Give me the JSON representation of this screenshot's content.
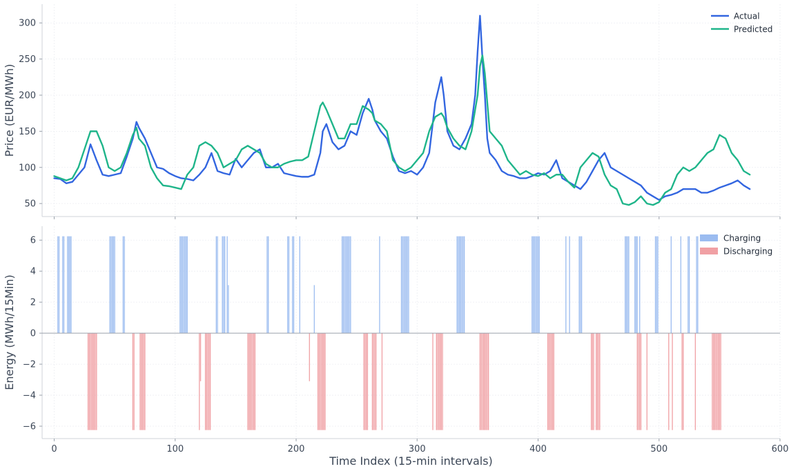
{
  "chart_data": [
    {
      "type": "line",
      "ylabel": "Price (EUR/MWh)",
      "xlim": [
        -10,
        600
      ],
      "ylim": [
        32,
        326
      ],
      "yticks": [
        50,
        100,
        150,
        200,
        250,
        300
      ],
      "grid": true,
      "legend": "top-right",
      "series": [
        {
          "name": "Actual",
          "color": "#3366e0",
          "x": [
            0,
            5,
            10,
            15,
            20,
            25,
            30,
            35,
            40,
            45,
            50,
            55,
            60,
            65,
            68,
            70,
            75,
            80,
            85,
            90,
            95,
            100,
            105,
            110,
            115,
            120,
            125,
            130,
            135,
            140,
            145,
            150,
            155,
            160,
            165,
            170,
            175,
            180,
            185,
            190,
            195,
            200,
            205,
            210,
            215,
            220,
            222,
            225,
            230,
            235,
            240,
            245,
            250,
            255,
            260,
            263,
            265,
            270,
            275,
            280,
            285,
            290,
            295,
            300,
            305,
            310,
            315,
            320,
            322,
            325,
            330,
            335,
            340,
            345,
            348,
            350,
            352,
            354,
            356,
            358,
            360,
            365,
            370,
            375,
            380,
            385,
            390,
            395,
            400,
            405,
            410,
            415,
            420,
            425,
            430,
            435,
            440,
            445,
            450,
            455,
            460,
            465,
            470,
            475,
            480,
            485,
            490,
            495,
            500,
            505,
            510,
            515,
            520,
            525,
            530,
            535,
            540,
            545,
            550,
            555,
            560,
            565,
            570,
            575
          ],
          "y": [
            85,
            84,
            78,
            80,
            90,
            100,
            132,
            110,
            90,
            88,
            90,
            92,
            115,
            140,
            163,
            155,
            140,
            120,
            100,
            98,
            92,
            88,
            85,
            84,
            82,
            90,
            100,
            120,
            95,
            92,
            90,
            112,
            100,
            110,
            120,
            125,
            100,
            100,
            105,
            92,
            90,
            88,
            87,
            87,
            90,
            120,
            150,
            160,
            135,
            125,
            130,
            150,
            145,
            175,
            195,
            180,
            165,
            150,
            140,
            115,
            95,
            92,
            95,
            90,
            100,
            120,
            190,
            225,
            200,
            150,
            130,
            125,
            140,
            160,
            200,
            260,
            310,
            250,
            200,
            140,
            120,
            110,
            95,
            90,
            88,
            85,
            85,
            88,
            92,
            90,
            95,
            110,
            85,
            80,
            75,
            70,
            80,
            95,
            110,
            120,
            100,
            95,
            90,
            85,
            80,
            75,
            65,
            60,
            55,
            60,
            62,
            65,
            70,
            70,
            70,
            65,
            65,
            68,
            72,
            75,
            78,
            82,
            75,
            70
          ]
        },
        {
          "name": "Predicted",
          "color": "#1fb58a",
          "x": [
            0,
            5,
            10,
            15,
            20,
            25,
            30,
            35,
            40,
            45,
            50,
            55,
            60,
            65,
            68,
            70,
            75,
            80,
            85,
            90,
            95,
            100,
            105,
            110,
            115,
            120,
            125,
            130,
            135,
            140,
            145,
            150,
            155,
            160,
            165,
            170,
            175,
            180,
            185,
            190,
            195,
            200,
            205,
            210,
            215,
            220,
            222,
            225,
            230,
            235,
            240,
            245,
            250,
            255,
            260,
            263,
            265,
            270,
            275,
            280,
            285,
            290,
            295,
            300,
            305,
            310,
            315,
            320,
            322,
            325,
            330,
            335,
            340,
            345,
            348,
            350,
            352,
            354,
            356,
            358,
            360,
            365,
            370,
            375,
            380,
            385,
            390,
            395,
            400,
            405,
            410,
            415,
            420,
            425,
            430,
            435,
            440,
            445,
            450,
            455,
            460,
            465,
            470,
            475,
            480,
            485,
            490,
            495,
            500,
            505,
            510,
            515,
            520,
            525,
            530,
            535,
            540,
            545,
            550,
            555,
            560,
            565,
            570,
            575
          ],
          "y": [
            88,
            85,
            82,
            85,
            100,
            125,
            150,
            150,
            130,
            100,
            95,
            100,
            120,
            145,
            155,
            140,
            130,
            100,
            85,
            75,
            74,
            72,
            70,
            90,
            100,
            130,
            135,
            130,
            120,
            100,
            105,
            110,
            125,
            130,
            125,
            120,
            105,
            100,
            100,
            105,
            108,
            110,
            110,
            115,
            150,
            185,
            190,
            180,
            160,
            140,
            140,
            160,
            160,
            185,
            180,
            175,
            165,
            160,
            150,
            110,
            100,
            95,
            100,
            110,
            120,
            150,
            170,
            175,
            170,
            155,
            140,
            130,
            125,
            150,
            180,
            200,
            240,
            255,
            230,
            190,
            150,
            140,
            130,
            110,
            100,
            90,
            95,
            90,
            88,
            92,
            85,
            90,
            90,
            80,
            72,
            100,
            110,
            120,
            115,
            90,
            75,
            70,
            50,
            48,
            52,
            60,
            50,
            48,
            52,
            65,
            70,
            90,
            100,
            95,
            100,
            110,
            120,
            125,
            145,
            140,
            120,
            110,
            95,
            90
          ]
        }
      ]
    },
    {
      "type": "bar",
      "xlabel": "Time Index (15-min intervals)",
      "ylabel": "Energy (MWh/15Min)",
      "xlim": [
        -10,
        600
      ],
      "ylim": [
        -6.8,
        6.9
      ],
      "xticks": [
        0,
        100,
        200,
        300,
        400,
        500,
        600
      ],
      "yticks": [
        -6,
        -4,
        -2,
        0,
        2,
        4,
        6
      ],
      "grid": true,
      "legend": "top-right",
      "series": [
        {
          "name": "Charging",
          "color": "#9bbcf0",
          "x": [
            3,
            4,
            7,
            8,
            11,
            12,
            13,
            14,
            46,
            47,
            48,
            49,
            50,
            57,
            58,
            104,
            105,
            106,
            107,
            108,
            109,
            110,
            134,
            135,
            139,
            140,
            141,
            143,
            144,
            176,
            177,
            193,
            194,
            197,
            198,
            203,
            215,
            238,
            239,
            240,
            241,
            242,
            243,
            244,
            245,
            269,
            287,
            288,
            289,
            290,
            291,
            292,
            293,
            333,
            334,
            335,
            336,
            337,
            338,
            339,
            395,
            396,
            397,
            398,
            399,
            400,
            401,
            423,
            426,
            434,
            435,
            436,
            472,
            473,
            474,
            475,
            480,
            481,
            482,
            484,
            497,
            498,
            499,
            510,
            518,
            524,
            525,
            531,
            532
          ],
          "y": [
            6.25,
            6.25,
            6.25,
            6.25,
            6.25,
            6.25,
            6.25,
            6.25,
            6.25,
            6.25,
            6.25,
            6.25,
            6.25,
            6.25,
            6.25,
            6.25,
            6.25,
            6.25,
            6.25,
            6.25,
            6.25,
            6.25,
            6.25,
            6.25,
            6.25,
            6.25,
            6.25,
            6.25,
            3.1,
            6.25,
            6.25,
            6.25,
            6.25,
            6.25,
            6.25,
            6.25,
            3.1,
            6.25,
            6.25,
            6.25,
            6.25,
            6.25,
            6.25,
            6.25,
            6.25,
            6.25,
            6.25,
            6.25,
            6.25,
            6.25,
            6.25,
            6.25,
            6.25,
            6.25,
            6.25,
            6.25,
            6.25,
            6.25,
            6.25,
            6.25,
            6.25,
            6.25,
            6.25,
            6.25,
            6.25,
            6.25,
            6.25,
            6.25,
            6.25,
            6.25,
            6.25,
            6.25,
            6.25,
            6.25,
            6.25,
            6.25,
            6.25,
            6.25,
            6.25,
            6.25,
            6.25,
            6.25,
            6.25,
            6.25,
            6.25,
            6.25,
            6.25,
            6.25,
            6.25
          ]
        },
        {
          "name": "Discharging",
          "color": "#f0a0a4",
          "x": [
            28,
            29,
            30,
            31,
            32,
            33,
            34,
            35,
            65,
            66,
            71,
            72,
            73,
            74,
            75,
            120,
            121,
            125,
            126,
            127,
            128,
            129,
            160,
            161,
            162,
            163,
            164,
            165,
            166,
            211,
            218,
            219,
            220,
            221,
            222,
            223,
            224,
            256,
            257,
            258,
            259,
            263,
            264,
            265,
            266,
            271,
            313,
            316,
            317,
            318,
            319,
            320,
            321,
            352,
            353,
            354,
            355,
            356,
            357,
            358,
            359,
            408,
            409,
            410,
            411,
            412,
            413,
            444,
            445,
            446,
            448,
            449,
            450,
            451,
            482,
            483,
            484,
            485,
            490,
            508,
            511,
            519,
            520,
            530,
            544,
            545,
            546,
            547,
            548,
            549,
            550,
            551
          ],
          "y": [
            -6.25,
            -6.25,
            -6.25,
            -6.25,
            -6.25,
            -6.25,
            -6.25,
            -6.25,
            -6.25,
            -6.25,
            -6.25,
            -6.25,
            -6.25,
            -6.25,
            -6.25,
            -6.25,
            -3.1,
            -6.25,
            -6.25,
            -6.25,
            -6.25,
            -6.25,
            -6.25,
            -6.25,
            -6.25,
            -6.25,
            -6.25,
            -6.25,
            -6.25,
            -3.1,
            -6.25,
            -6.25,
            -6.25,
            -6.25,
            -6.25,
            -6.25,
            -6.25,
            -6.25,
            -6.25,
            -6.25,
            -6.25,
            -6.25,
            -6.25,
            -6.25,
            -6.25,
            -6.25,
            -6.25,
            -6.25,
            -6.25,
            -6.25,
            -6.25,
            -6.25,
            -6.25,
            -6.25,
            -6.25,
            -6.25,
            -6.25,
            -6.25,
            -6.25,
            -6.25,
            -6.25,
            -6.25,
            -6.25,
            -6.25,
            -6.25,
            -6.25,
            -6.25,
            -6.25,
            -6.25,
            -6.25,
            -6.25,
            -6.25,
            -6.25,
            -6.25,
            -6.25,
            -6.25,
            -6.25,
            -6.25,
            -6.25,
            -6.25,
            -6.25,
            -6.25,
            -6.25,
            -6.25,
            -6.25,
            -6.25,
            -6.25,
            -6.25,
            -6.25,
            -6.25,
            -6.25,
            -6.25
          ]
        }
      ]
    }
  ]
}
